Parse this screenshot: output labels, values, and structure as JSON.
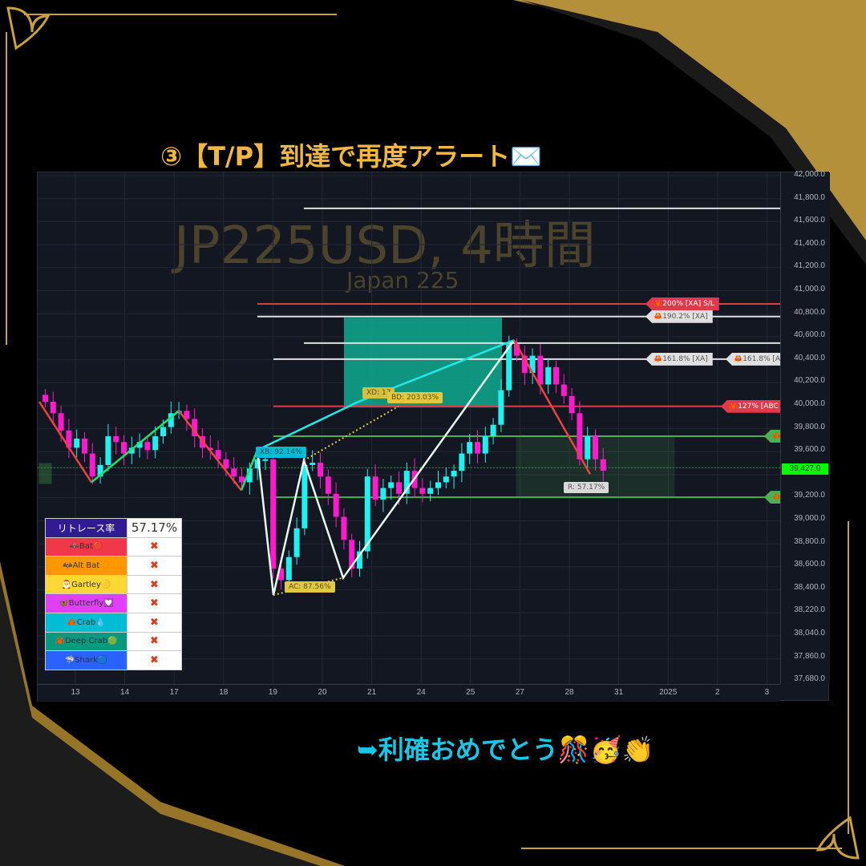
{
  "headline": "③【T/P】到達で再度アラート✉️",
  "footline": "➥利確おめでとう🎊🥳👏",
  "colors": {
    "gold": "#f0b840",
    "bull": "#1ff0f0",
    "bear": "#ff1acd",
    "red_line": "#e03a48",
    "green_line": "#4caf50",
    "teal_zone": "#0fa38a"
  },
  "chart_data": {
    "type": "candlestick",
    "title": "JP225USD, 4時間",
    "subtitle": "Japan 225",
    "ylim": [
      37600,
      42000
    ],
    "y_ticks": [
      "42,000.0",
      "41,800.0",
      "41,600.0",
      "41,400.0",
      "41,200.0",
      "41,000.0",
      "40,800.0",
      "40,600.0",
      "40,400.0",
      "40,200.0",
      "40,000.0",
      "39,800.0",
      "39,600.0",
      "39,427.0",
      "39,200.0",
      "39,000.0",
      "38,800.0",
      "38,600.0",
      "38,400.0",
      "38,220.0",
      "38,040.0",
      "37,860.0",
      "37,680.0"
    ],
    "x_ticks": [
      "13",
      "14",
      "17",
      "18",
      "19",
      "20",
      "21",
      "24",
      "25",
      "27",
      "28",
      "31",
      "2025",
      "2",
      "3"
    ],
    "last_price": "39,427.0",
    "closes": [
      40000,
      39900,
      39750,
      39600,
      39680,
      39550,
      39350,
      39450,
      39700,
      39650,
      39550,
      39600,
      39650,
      39580,
      39700,
      39780,
      39900,
      39920,
      39850,
      39700,
      39600,
      39580,
      39500,
      39420,
      39350,
      39300,
      39420,
      39500,
      39500,
      38550,
      38450,
      38650,
      38900,
      39450,
      39470,
      39350,
      39200,
      39000,
      38800,
      38550,
      38700,
      39350,
      39150,
      39250,
      39300,
      39200,
      39400,
      39250,
      39200,
      39250,
      39300,
      39350,
      39400,
      39550,
      39650,
      39550,
      39700,
      39800,
      40100,
      40500,
      40400,
      40250,
      40400,
      40150,
      40300,
      40150,
      40050,
      39900,
      39500,
      39700,
      39500,
      39400
    ],
    "levels": [
      {
        "price": 41680,
        "color": "#e0e0e0",
        "label": ""
      },
      {
        "price": 40850,
        "color": "#e03a48",
        "label": "200% [XA] S/L"
      },
      {
        "price": 40740,
        "color": "#e0e0e0",
        "label": "190.2% [XA]"
      },
      {
        "price": 40510,
        "color": "#e0e0e0",
        "label": ""
      },
      {
        "price": 40370,
        "color": "#e0e0e0",
        "label": "161.8% [XA]",
        "label2": "161.8% [A"
      },
      {
        "price": 39960,
        "color": "#e03a48",
        "label": "127% [ABC"
      },
      {
        "price": 39700,
        "color": "#4caf50",
        "label": ""
      },
      {
        "price": 39170,
        "color": "#4caf50",
        "label": ""
      }
    ],
    "pattern_labels": {
      "xb": "XB: 92.14%",
      "xd": "XD: 17",
      "bd": "BD: 203.03%",
      "ac": "AC: 87.56%",
      "r": "R: 57.17%"
    }
  },
  "retrace_table": {
    "header": "リトレース率",
    "value": "57.17%",
    "rows": [
      {
        "name": "Bat",
        "emoji": "🦇",
        "dot": "🔴",
        "color": "#f0384a",
        "status": "✖"
      },
      {
        "name": "Alt Bat",
        "emoji": "🦇",
        "dot": "🟠",
        "color": "#ff9800",
        "status": "✖"
      },
      {
        "name": "Gartley",
        "emoji": "🎅",
        "dot": "🟡",
        "color": "#fdd835",
        "status": "✖"
      },
      {
        "name": "Butterfly",
        "emoji": "🦋",
        "dot": "💟",
        "color": "#e040fb",
        "status": "✖"
      },
      {
        "name": "Crab",
        "emoji": "🦀",
        "dot": "💧",
        "color": "#00bcd4",
        "status": "✖"
      },
      {
        "name": "Deep Crab",
        "emoji": "🦀",
        "dot": "🟢",
        "color": "#089981",
        "status": "✖"
      },
      {
        "name": "Shark",
        "emoji": "🦈",
        "dot": "🔵",
        "color": "#2962ff",
        "status": "✖"
      }
    ]
  }
}
